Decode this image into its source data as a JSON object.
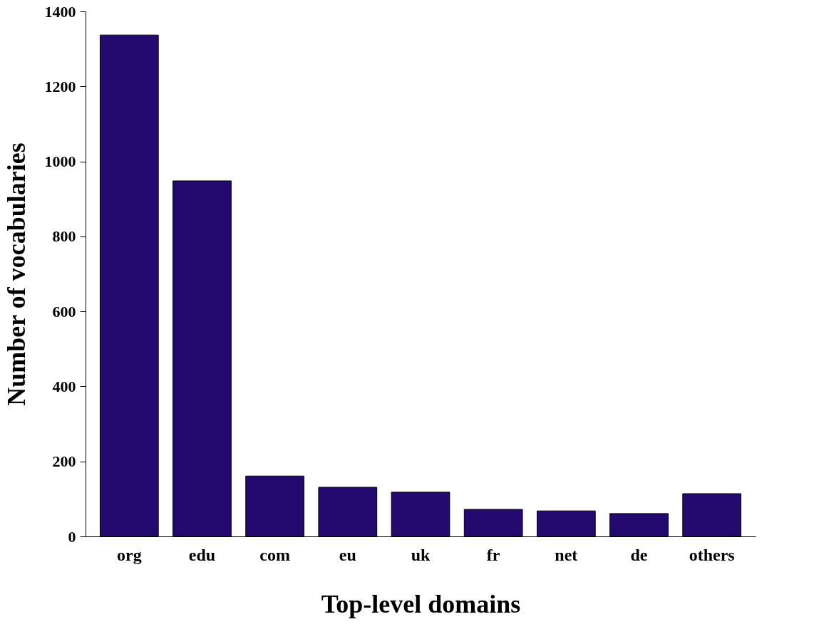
{
  "chart_data": {
    "type": "bar",
    "xlabel": "Top-level domains",
    "ylabel": "Number of vocabularies",
    "categories": [
      "org",
      "edu",
      "com",
      "eu",
      "uk",
      "fr",
      "net",
      "de",
      "others"
    ],
    "values": [
      1337,
      948,
      161,
      131,
      118,
      72,
      68,
      61,
      114
    ],
    "color": "#24096e",
    "ylim": [
      0,
      1400
    ],
    "yticks": [
      0,
      200,
      400,
      600,
      800,
      1000,
      1200,
      1400
    ],
    "grid": false
  }
}
